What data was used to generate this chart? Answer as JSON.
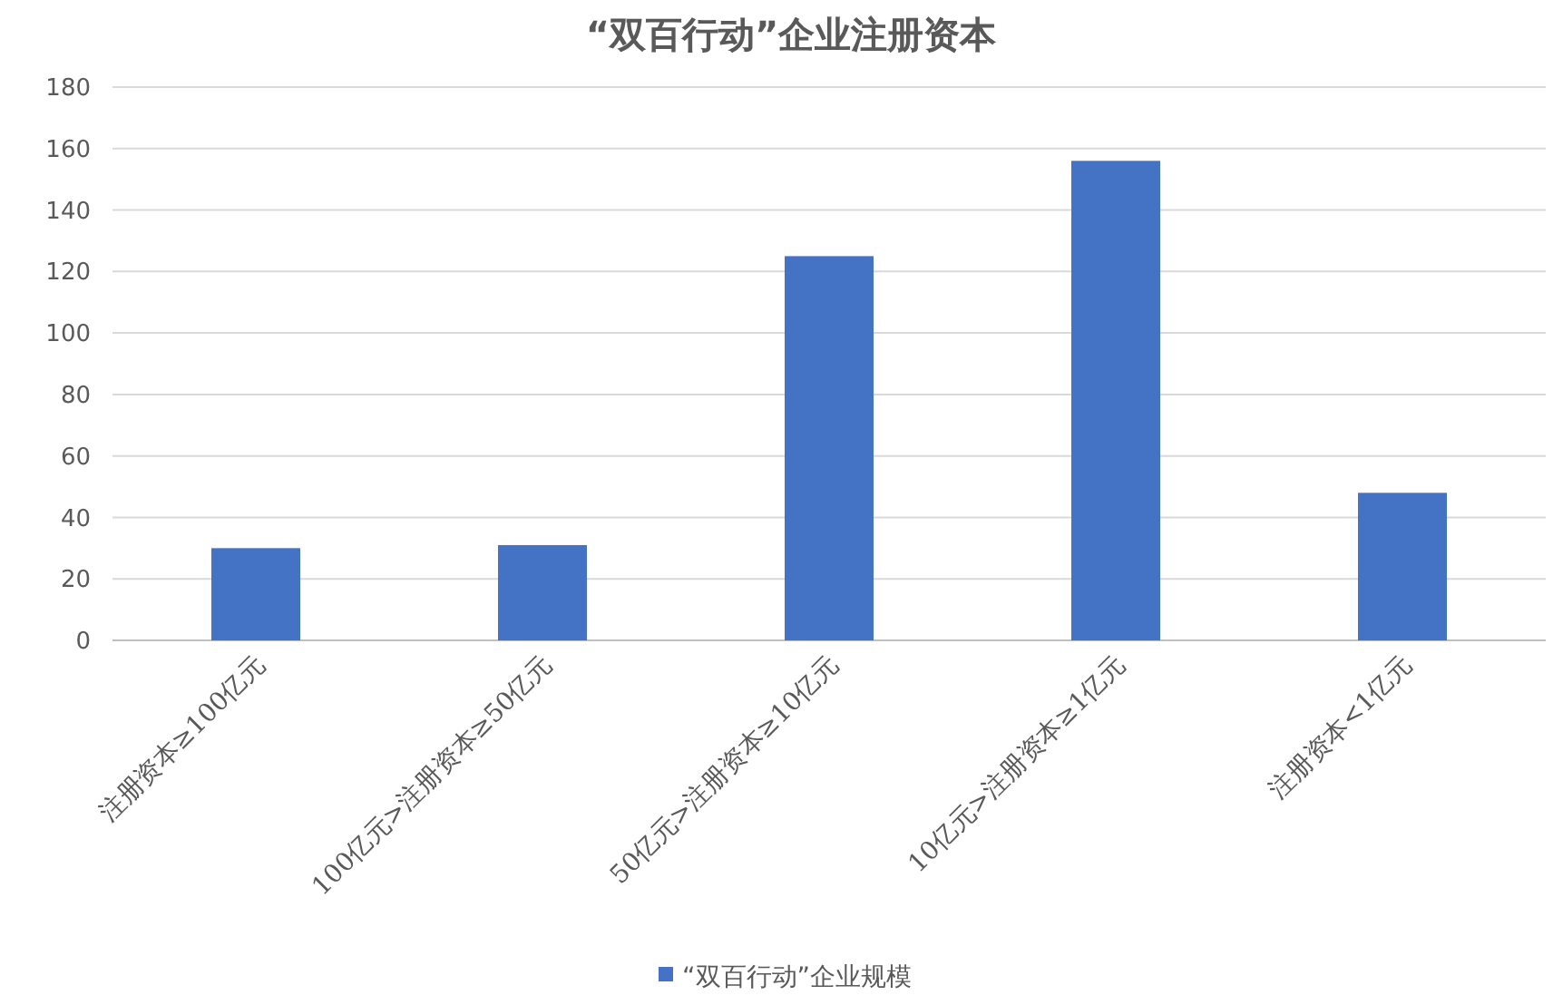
{
  "chart_data": {
    "type": "bar",
    "title": "“双百行动”企业注册资本",
    "categories": [
      "注册资本≥100亿元",
      "100亿元>注册资本≥50亿元",
      "50亿元>注册资本≥10亿元",
      "10亿元>注册资本≥1亿元",
      "注册资本<1亿元"
    ],
    "series": [
      {
        "name": "“双百行动”企业规模",
        "color": "#4472c4",
        "values": [
          30,
          31,
          125,
          156,
          48
        ]
      }
    ],
    "ylim": [
      0,
      180
    ],
    "yticks": [
      0,
      20,
      40,
      60,
      80,
      100,
      120,
      140,
      160,
      180
    ],
    "grid": "y",
    "legend": "bottom"
  }
}
